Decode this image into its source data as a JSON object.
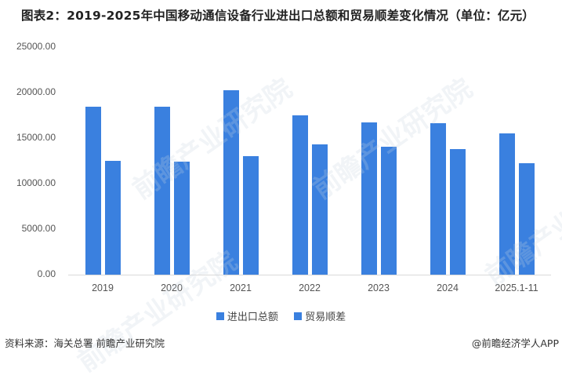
{
  "title": "图表2：2019-2025年中国移动通信设备行业进出口总额和贸易顺差变化情况（单位：亿元）",
  "colors": {
    "bar": "#3A80DF",
    "axis": "#d9d9d9"
  },
  "yaxis": {
    "ticks": [
      "25000.00",
      "20000.00",
      "15000.00",
      "10000.00",
      "5000.00",
      "0.00"
    ]
  },
  "legend": [
    {
      "label": "进出口总额"
    },
    {
      "label": "贸易顺差"
    }
  ],
  "footer": {
    "source": "资料来源：海关总署 前瞻产业研究院",
    "credit": "@前瞻经济学人APP"
  },
  "watermark": "前瞻产业研究院",
  "chart_data": {
    "type": "bar",
    "title": "图表2：2019-2025年中国移动通信设备行业进出口总额和贸易顺差变化情况（单位：亿元）",
    "categories": [
      "2019",
      "2020",
      "2021",
      "2022",
      "2023",
      "2024",
      "2025.1-11"
    ],
    "series": [
      {
        "name": "进出口总额",
        "values": [
          18450,
          18450,
          20260,
          17500,
          16720,
          16640,
          15520
        ]
      },
      {
        "name": "贸易顺差",
        "values": [
          12500,
          12410,
          13020,
          14310,
          14050,
          13790,
          12240
        ]
      }
    ],
    "xlabel": "",
    "ylabel": "亿元",
    "ylim": [
      0,
      25000
    ],
    "yticks": [
      0,
      5000,
      10000,
      15000,
      20000,
      25000
    ],
    "grid": false,
    "legend_position": "bottom"
  }
}
